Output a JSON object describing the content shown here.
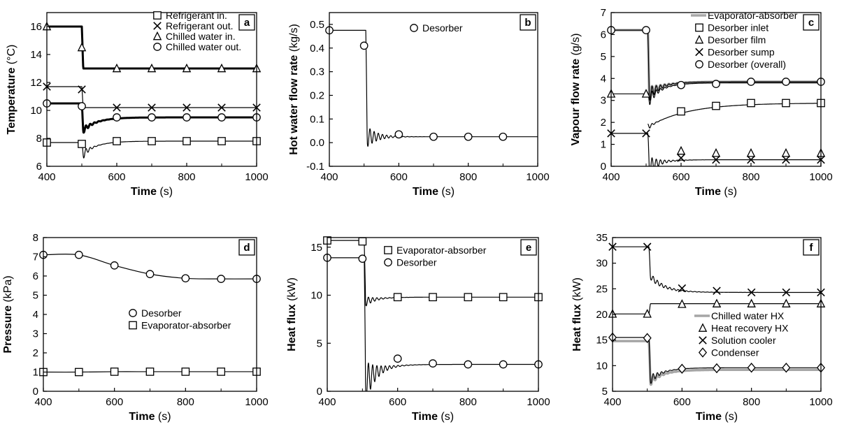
{
  "chart_data": [
    {
      "id": "a",
      "type": "line",
      "panel_label": "a",
      "xlabel_bold": "Time",
      "xlabel_unit": "(s)",
      "ylabel_bold": "Temperature",
      "ylabel_unit": "(°C)",
      "xlim": [
        400,
        1000
      ],
      "ylim": [
        6,
        17
      ],
      "xticks": [
        400,
        600,
        800,
        1000
      ],
      "yticks": [
        6,
        8,
        10,
        12,
        14,
        16
      ],
      "legend_position": "top-right",
      "series": [
        {
          "name": "Refrigerant in.",
          "marker": "square",
          "color": "#000000",
          "width": 1.2,
          "step": 500,
          "before": 7.7,
          "after": 7.8,
          "dip": -1.0,
          "amp": 0.5,
          "decay": 15,
          "x": [
            400,
            500,
            600,
            700,
            800,
            900,
            1000
          ],
          "y": [
            7.7,
            7.6,
            7.8,
            7.8,
            7.8,
            7.8,
            7.8
          ]
        },
        {
          "name": "Refrigerant out.",
          "marker": "x",
          "color": "#000000",
          "width": 1.2,
          "step": 500,
          "before": 11.7,
          "after": 10.2,
          "dip": 0,
          "amp": 0,
          "decay": 15,
          "x": [
            400,
            500,
            600,
            700,
            800,
            900,
            1000
          ],
          "y": [
            11.7,
            11.5,
            10.2,
            10.2,
            10.2,
            10.2,
            10.2
          ]
        },
        {
          "name": "Chilled water in.",
          "marker": "triangle",
          "color": "#000000",
          "width": 3,
          "step": 500,
          "before": 16.0,
          "after": 13.0,
          "dip": 0,
          "amp": 0,
          "decay": 15,
          "x": [
            400,
            500,
            600,
            700,
            800,
            900,
            1000
          ],
          "y": [
            16.0,
            14.5,
            13.0,
            13.0,
            13.0,
            13.0,
            13.0
          ]
        },
        {
          "name": "Chilled water out.",
          "marker": "circle",
          "color": "#000000",
          "width": 3,
          "step": 500,
          "before": 10.5,
          "after": 9.5,
          "dip": -1.0,
          "amp": 0.3,
          "decay": 20,
          "x": [
            400,
            500,
            600,
            700,
            800,
            900,
            1000
          ],
          "y": [
            10.5,
            10.3,
            9.5,
            9.5,
            9.5,
            9.5,
            9.5
          ]
        }
      ]
    },
    {
      "id": "b",
      "type": "line",
      "panel_label": "b",
      "xlabel_bold": "Time",
      "xlabel_unit": "(s)",
      "ylabel_bold": "Hot water flow rate",
      "ylabel_unit": "(kg/s)",
      "xlim": [
        400,
        1000
      ],
      "ylim": [
        -0.1,
        0.55
      ],
      "xticks": [
        400,
        600,
        800,
        1000
      ],
      "yticks": [
        -0.1,
        0.0,
        0.1,
        0.2,
        0.3,
        0.4,
        0.5
      ],
      "ytick_decimals": 1,
      "legend_position": "top-center",
      "series": [
        {
          "name": "Desorber",
          "marker": "circle",
          "color": "#000000",
          "width": 1.2,
          "step": 505,
          "before": 0.475,
          "after": 0.025,
          "dip": 0,
          "amp": 0.05,
          "decay": 30,
          "x": [
            400,
            500,
            600,
            700,
            800,
            900
          ],
          "y": [
            0.475,
            0.41,
            0.035,
            0.025,
            0.025,
            0.025
          ]
        }
      ]
    },
    {
      "id": "c",
      "type": "line",
      "panel_label": "c",
      "xlabel_bold": "Time",
      "xlabel_unit": "(s)",
      "ylabel_bold": "Vapour flow rate",
      "ylabel_unit": "(g/s)",
      "xlim": [
        400,
        1000
      ],
      "ylim": [
        0,
        7
      ],
      "xticks": [
        400,
        600,
        800,
        1000
      ],
      "yticks": [
        0,
        1,
        2,
        3,
        4,
        5,
        6,
        7
      ],
      "legend_position": "top-right",
      "series": [
        {
          "name": "Evaporator-absorber",
          "marker": "none",
          "color": "#a6a6a6",
          "width": 3.5,
          "step": 505,
          "before": 6.2,
          "after": 3.85,
          "dip": -0.6,
          "amp": 0.4,
          "decay": 25,
          "x": [
            400,
            500,
            600,
            700,
            800,
            900,
            1000
          ],
          "y": [
            6.2,
            6.2,
            3.75,
            3.8,
            3.85,
            3.85,
            3.85
          ]
        },
        {
          "name": "Desorber inlet",
          "marker": "square",
          "color": "#000000",
          "width": 1.2,
          "step": 505,
          "before": 0,
          "after": 0,
          "dip": 0,
          "amp": 0,
          "decay": 20,
          "x": [
            600,
            700,
            800,
            900,
            1000
          ],
          "y": [
            2.5,
            2.75,
            2.88,
            2.88,
            2.88
          ]
        },
        {
          "name": "Desorber film",
          "marker": "triangle",
          "color": "#000000",
          "width": 1.2,
          "step": 505,
          "before": 3.3,
          "after": 3.8,
          "dip": -0.8,
          "amp": 0.4,
          "decay": 20,
          "x": [
            400,
            500,
            600,
            700,
            800,
            900,
            1000
          ],
          "y": [
            3.3,
            3.3,
            0.7,
            0.6,
            0.6,
            0.6,
            0.6
          ]
        },
        {
          "name": "Desorber sump",
          "marker": "x",
          "color": "#000000",
          "width": 1.2,
          "step": 505,
          "before": 1.5,
          "after": 0.3,
          "dip": -0.3,
          "amp": 0.5,
          "decay": 25,
          "x": [
            400,
            500,
            600,
            700,
            800,
            900,
            1000
          ],
          "y": [
            1.5,
            1.5,
            0.38,
            0.3,
            0.3,
            0.3,
            0.3
          ]
        },
        {
          "name": "Desorber (overall)",
          "marker": "circle",
          "color": "#000000",
          "width": 1.2,
          "step": 505,
          "before": 6.2,
          "after": 3.85,
          "dip": -0.6,
          "amp": 0.4,
          "decay": 25,
          "x": [
            400,
            500,
            600,
            700,
            800,
            900,
            1000
          ],
          "y": [
            6.2,
            6.2,
            3.7,
            3.75,
            3.85,
            3.85,
            3.85
          ]
        }
      ]
    },
    {
      "id": "d",
      "type": "line",
      "panel_label": "d",
      "xlabel_bold": "Time",
      "xlabel_unit": "(s)",
      "ylabel_bold": "Pressure",
      "ylabel_unit": "(kPa)",
      "xlim": [
        400,
        1000
      ],
      "ylim": [
        0,
        8
      ],
      "xticks": [
        400,
        600,
        800,
        1000
      ],
      "yticks": [
        0,
        1,
        2,
        3,
        4,
        5,
        6,
        7,
        8
      ],
      "legend_position": "center-right",
      "series": [
        {
          "name": "Desorber",
          "marker": "circle",
          "color": "#000000",
          "width": 1.2,
          "x": [
            400,
            500,
            600,
            700,
            800,
            900,
            1000
          ],
          "y": [
            7.1,
            7.1,
            6.55,
            6.1,
            5.88,
            5.85,
            5.85
          ]
        },
        {
          "name": "Evaporator-absorber",
          "marker": "square",
          "color": "#000000",
          "width": 1.2,
          "x": [
            400,
            500,
            600,
            700,
            800,
            900,
            1000
          ],
          "y": [
            1.0,
            1.0,
            1.02,
            1.02,
            1.02,
            1.02,
            1.02
          ]
        }
      ]
    },
    {
      "id": "e",
      "type": "line",
      "panel_label": "e",
      "xlabel_bold": "Time",
      "xlabel_unit": "(s)",
      "ylabel_bold": "Heat flux",
      "ylabel_unit": "(kW)",
      "xlim": [
        400,
        1000
      ],
      "ylim": [
        0,
        16
      ],
      "xticks": [
        400,
        600,
        800,
        1000
      ],
      "yticks": [
        0,
        5,
        10,
        15
      ],
      "legend_position": "top-center",
      "series": [
        {
          "name": "Evaporator-absorber",
          "marker": "square",
          "color": "#000000",
          "width": 1.2,
          "step": 505,
          "before": 15.7,
          "after": 9.8,
          "dip": -0.5,
          "amp": 0.6,
          "decay": 25,
          "x": [
            400,
            500,
            600,
            700,
            800,
            900,
            1000
          ],
          "y": [
            15.7,
            15.6,
            9.8,
            9.8,
            9.8,
            9.8,
            9.8
          ]
        },
        {
          "name": "Desorber",
          "marker": "circle",
          "color": "#000000",
          "width": 1.2,
          "step": 505,
          "before": 13.9,
          "after": 2.8,
          "dip": -2.0,
          "amp": 2.5,
          "decay": 28,
          "x": [
            400,
            500,
            600,
            700,
            800,
            900,
            1000
          ],
          "y": [
            13.9,
            13.8,
            3.4,
            2.9,
            2.8,
            2.8,
            2.8
          ]
        }
      ]
    },
    {
      "id": "f",
      "type": "line",
      "panel_label": "f",
      "xlabel_bold": "Time",
      "xlabel_unit": "(s)",
      "ylabel_bold": "Heat flux",
      "ylabel_unit": "(kW)",
      "xlim": [
        400,
        1000
      ],
      "ylim": [
        5,
        35
      ],
      "xticks": [
        400,
        600,
        800,
        1000
      ],
      "yticks": [
        5,
        10,
        15,
        20,
        25,
        30,
        35
      ],
      "legend_position": "center-right",
      "series": [
        {
          "name": "Chilled water HX",
          "marker": "none",
          "color": "#a6a6a6",
          "width": 3.5,
          "step": 505,
          "before": 14.8,
          "after": 9.2,
          "dip": -2.5,
          "amp": 1.0,
          "decay": 20,
          "x": [
            400,
            500,
            600,
            700,
            800,
            900,
            1000
          ],
          "y": [
            14.8,
            14.8,
            9.3,
            9.2,
            9.2,
            9.2,
            9.2
          ]
        },
        {
          "name": "Heat recovery HX",
          "marker": "triangle",
          "color": "#000000",
          "width": 1.2,
          "step": 505,
          "before": 20.1,
          "after": 22.1,
          "dip": 0,
          "amp": 0,
          "decay": 15,
          "x": [
            400,
            500,
            600,
            700,
            800,
            900,
            1000
          ],
          "y": [
            20.1,
            20.1,
            22.0,
            22.1,
            22.1,
            22.1,
            22.1
          ]
        },
        {
          "name": "Solution cooler",
          "marker": "x",
          "color": "#000000",
          "width": 1.2,
          "step": 505,
          "before": 33.2,
          "after": 24.3,
          "dip": 3.5,
          "amp": 0.7,
          "decay": 50,
          "x": [
            400,
            500,
            600,
            700,
            800,
            900,
            1000
          ],
          "y": [
            33.2,
            33.2,
            25.1,
            24.6,
            24.3,
            24.3,
            24.3
          ]
        },
        {
          "name": "Condenser",
          "marker": "diamond",
          "color": "#000000",
          "width": 1.2,
          "step": 505,
          "before": 15.5,
          "after": 9.6,
          "dip": -2.5,
          "amp": 1.2,
          "decay": 22,
          "x": [
            400,
            500,
            600,
            700,
            800,
            900,
            1000
          ],
          "y": [
            15.5,
            15.4,
            9.4,
            9.5,
            9.6,
            9.6,
            9.6
          ]
        }
      ]
    }
  ]
}
